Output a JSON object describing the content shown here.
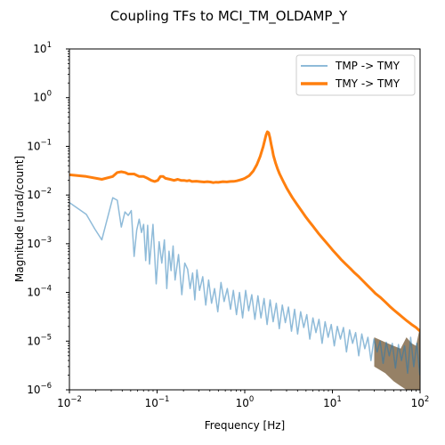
{
  "chart_data": {
    "type": "line",
    "title": "Coupling TFs to MCI_TM_OLDAMP_Y",
    "xlabel": "Frequency [Hz]",
    "ylabel": "Magnitude [urad/count]",
    "xscale": "log",
    "yscale": "log",
    "xlim": [
      0.01,
      100
    ],
    "ylim": [
      1e-06,
      10
    ],
    "grid": false,
    "legend_position": "top-right",
    "x_tick_labels": [
      {
        "base": "10",
        "exp": "−2",
        "value": 0.01
      },
      {
        "base": "10",
        "exp": "−1",
        "value": 0.1
      },
      {
        "base": "10",
        "exp": "0",
        "value": 1
      },
      {
        "base": "10",
        "exp": "1",
        "value": 10
      },
      {
        "base": "10",
        "exp": "2",
        "value": 100
      }
    ],
    "y_tick_labels": [
      {
        "base": "10",
        "exp": "−6",
        "value": 1e-06
      },
      {
        "base": "10",
        "exp": "−5",
        "value": 1e-05
      },
      {
        "base": "10",
        "exp": "−4",
        "value": 0.0001
      },
      {
        "base": "10",
        "exp": "−3",
        "value": 0.001
      },
      {
        "base": "10",
        "exp": "−2",
        "value": 0.01
      },
      {
        "base": "10",
        "exp": "−1",
        "value": 0.1
      },
      {
        "base": "10",
        "exp": "0",
        "value": 1
      },
      {
        "base": "10",
        "exp": "1",
        "value": 10
      }
    ],
    "series": [
      {
        "name": "TMP -> TMY",
        "color": "#1f77b4",
        "opacity": 0.5,
        "width": 1.5,
        "x": [
          0.01,
          0.0156,
          0.0195,
          0.0234,
          0.0312,
          0.0352,
          0.0391,
          0.043,
          0.0469,
          0.0508,
          0.0547,
          0.0586,
          0.0625,
          0.0664,
          0.0703,
          0.0742,
          0.0781,
          0.082,
          0.0898,
          0.0977,
          0.1055,
          0.1133,
          0.1211,
          0.1289,
          0.1367,
          0.1445,
          0.1523,
          0.1602,
          0.1758,
          0.1914,
          0.207,
          0.2227,
          0.2383,
          0.2539,
          0.2695,
          0.2852,
          0.3047,
          0.332,
          0.3594,
          0.3867,
          0.418,
          0.4531,
          0.4922,
          0.5352,
          0.582,
          0.6328,
          0.6875,
          0.7422,
          0.8047,
          0.8711,
          0.9453,
          1.0234,
          1.1094,
          1.2031,
          1.3047,
          1.4141,
          1.5312,
          1.6602,
          1.7969,
          1.9453,
          2.1094,
          2.2852,
          2.4766,
          2.6836,
          2.9062,
          3.1484,
          3.4141,
          3.6992,
          4.0078,
          4.3438,
          4.707,
          5.1016,
          5.5273,
          5.9883,
          6.4883,
          7.0312,
          7.6172,
          8.2539,
          8.9453,
          9.6914,
          10.5,
          11.38,
          12.33,
          13.36,
          14.48,
          15.69,
          17.0,
          18.42,
          19.96,
          21.63,
          23.44,
          25.4,
          27.52,
          29.82,
          32.31,
          35.01,
          37.94,
          41.11,
          44.55,
          48.27,
          52.31,
          56.68,
          61.42,
          66.55,
          72.11,
          78.14,
          84.67,
          91.75,
          99.42
        ],
        "y": [
          0.007,
          0.004,
          0.002,
          0.0012,
          0.0088,
          0.0078,
          0.0022,
          0.0045,
          0.0038,
          0.0048,
          0.00055,
          0.0019,
          0.0032,
          0.0017,
          0.0025,
          0.00045,
          0.0024,
          0.00038,
          0.0025,
          0.00015,
          0.0011,
          0.0004,
          0.0012,
          0.00012,
          0.0007,
          0.00028,
          0.0009,
          0.00018,
          0.0006,
          9e-05,
          0.0004,
          0.0003,
          0.00012,
          0.00025,
          7e-05,
          0.00029,
          0.00011,
          0.00021,
          5.5e-05,
          0.00018,
          6e-05,
          0.00012,
          4e-05,
          0.00016,
          6.5e-05,
          0.00012,
          4.5e-05,
          0.00011,
          3.5e-05,
          0.0001,
          3e-05,
          0.00011,
          4.2e-05,
          9e-05,
          2.8e-05,
          8.5e-05,
          3e-05,
          7.5e-05,
          2.2e-05,
          7e-05,
          2.5e-05,
          6e-05,
          1.8e-05,
          5.5e-05,
          2.4e-05,
          5e-05,
          1.6e-05,
          4.5e-05,
          1.4e-05,
          4e-05,
          1.9e-05,
          3.5e-05,
          1.1e-05,
          3e-05,
          1.5e-05,
          2.8e-05,
          9e-06,
          2.5e-05,
          1.2e-05,
          2.2e-05,
          8e-06,
          2e-05,
          1.1e-05,
          1.9e-05,
          6e-06,
          1.7e-05,
          9e-06,
          1.5e-05,
          5e-06,
          1.4e-05,
          7e-06,
          1.2e-05,
          4e-06,
          1.1e-05,
          6e-06,
          1e-05,
          3.5e-06,
          9.5e-06,
          5e-06,
          9e-06,
          2.8e-06,
          8.5e-06,
          4e-06,
          8e-06,
          2.2e-06,
          1.2e-05,
          3e-06,
          9e-06,
          2e-06
        ]
      },
      {
        "name": "TMY -> TMY",
        "color": "#ff7f0e",
        "opacity": 1,
        "width": 3,
        "x": [
          0.01,
          0.0156,
          0.0234,
          0.0312,
          0.0352,
          0.0391,
          0.043,
          0.0469,
          0.0547,
          0.0625,
          0.0703,
          0.0781,
          0.0859,
          0.0938,
          0.1016,
          0.1094,
          0.1172,
          0.125,
          0.1406,
          0.1562,
          0.1719,
          0.1875,
          0.2031,
          0.2188,
          0.2344,
          0.25,
          0.2812,
          0.3125,
          0.3438,
          0.375,
          0.4062,
          0.4375,
          0.4688,
          0.5,
          0.5625,
          0.625,
          0.6875,
          0.75,
          0.8125,
          0.875,
          0.9375,
          1.0,
          1.125,
          1.25,
          1.375,
          1.5,
          1.625,
          1.75,
          1.8125,
          1.875,
          1.9375,
          2.0,
          2.0625,
          2.125,
          2.25,
          2.375,
          2.5,
          2.75,
          3.0,
          3.25,
          3.5,
          4.0,
          4.5,
          5.0,
          5.5,
          6.0,
          7.0,
          8.0,
          9.0,
          10.0,
          11.0,
          12.5,
          14.0,
          16.0,
          18.0,
          20.0,
          22.5,
          25.0,
          28.0,
          31.0,
          35.0,
          40.0,
          45.0,
          50.0,
          56.0,
          63.0,
          71.0,
          80.0,
          90.0,
          100.0
        ],
        "y": [
          0.026,
          0.024,
          0.021,
          0.024,
          0.029,
          0.03,
          0.029,
          0.027,
          0.027,
          0.024,
          0.024,
          0.022,
          0.02,
          0.019,
          0.02,
          0.024,
          0.024,
          0.022,
          0.021,
          0.02,
          0.021,
          0.02,
          0.02,
          0.0195,
          0.02,
          0.019,
          0.0192,
          0.0188,
          0.0185,
          0.0188,
          0.0185,
          0.018,
          0.0184,
          0.0182,
          0.0188,
          0.0186,
          0.019,
          0.0191,
          0.0196,
          0.0203,
          0.021,
          0.022,
          0.025,
          0.031,
          0.042,
          0.062,
          0.1,
          0.17,
          0.2,
          0.19,
          0.15,
          0.11,
          0.085,
          0.065,
          0.045,
          0.034,
          0.027,
          0.019,
          0.014,
          0.011,
          0.0088,
          0.0062,
          0.0046,
          0.0035,
          0.0028,
          0.0023,
          0.0016,
          0.0012,
          0.00094,
          0.00075,
          0.00062,
          0.00048,
          0.00039,
          0.00031,
          0.00025,
          0.00021,
          0.00017,
          0.00014,
          0.000115,
          9.5e-05,
          8e-05,
          6.4e-05,
          5.2e-05,
          4.4e-05,
          3.7e-05,
          3.1e-05,
          2.6e-05,
          2.2e-05,
          1.9e-05,
          1.6e-05
        ]
      }
    ],
    "filled_region": {
      "color": "#8b7355",
      "x": [
        30,
        40,
        50,
        60,
        70,
        80,
        90,
        100
      ],
      "y_high": [
        1.2e-05,
        9.5e-06,
        8e-06,
        7e-06,
        1.2e-05,
        9e-06,
        8e-06,
        2e-05
      ],
      "y_low": [
        3e-06,
        2.2e-06,
        1.5e-06,
        1.2e-06,
        1e-06,
        1e-06,
        1e-06,
        1e-06
      ]
    }
  }
}
